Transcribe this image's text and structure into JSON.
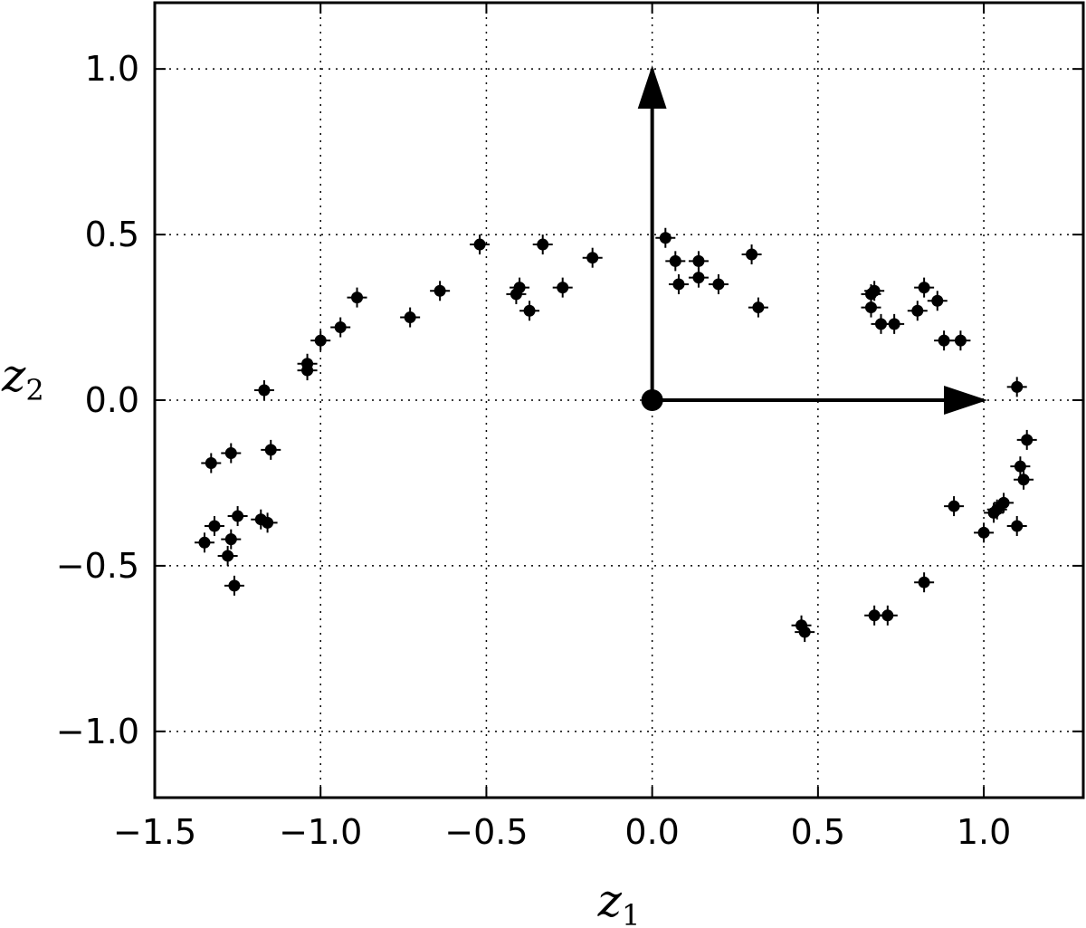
{
  "chart_data": {
    "type": "scatter",
    "title": "",
    "xlabel": {
      "base": "z",
      "sub": "1"
    },
    "ylabel": {
      "base": "z",
      "sub": "2"
    },
    "xlim": [
      -1.5,
      1.3
    ],
    "ylim": [
      -1.2,
      1.2
    ],
    "xticks": [
      -1.5,
      -1.0,
      -0.5,
      0.0,
      0.5,
      1.0
    ],
    "xtick_labels": [
      "−1.5",
      "−1.0",
      "−0.5",
      "0.0",
      "0.5",
      "1.0"
    ],
    "yticks": [
      -1.0,
      -0.5,
      0.0,
      0.5,
      1.0
    ],
    "ytick_labels": [
      "−1.0",
      "−0.5",
      "0.0",
      "0.5",
      "1.0"
    ],
    "grid": true,
    "grid_style": "dotted",
    "marker": "point with plus",
    "color": "#000000",
    "origin_point": [
      0.0,
      0.0
    ],
    "vectors": [
      {
        "from": [
          0.0,
          0.0
        ],
        "to": [
          1.0,
          0.0
        ]
      },
      {
        "from": [
          0.0,
          0.0
        ],
        "to": [
          0.0,
          1.0
        ]
      }
    ],
    "points": [
      [
        -1.35,
        -0.43
      ],
      [
        -1.32,
        -0.38
      ],
      [
        -1.28,
        -0.47
      ],
      [
        -1.27,
        -0.42
      ],
      [
        -1.26,
        -0.56
      ],
      [
        -1.25,
        -0.35
      ],
      [
        -1.18,
        -0.36
      ],
      [
        -1.16,
        -0.37
      ],
      [
        -1.33,
        -0.19
      ],
      [
        -1.27,
        -0.16
      ],
      [
        -1.15,
        -0.15
      ],
      [
        -1.17,
        0.03
      ],
      [
        -1.04,
        0.11
      ],
      [
        -1.04,
        0.09
      ],
      [
        -1.0,
        0.18
      ],
      [
        -0.94,
        0.22
      ],
      [
        -0.89,
        0.31
      ],
      [
        -0.73,
        0.25
      ],
      [
        -0.64,
        0.33
      ],
      [
        -0.52,
        0.47
      ],
      [
        -0.41,
        0.32
      ],
      [
        -0.4,
        0.34
      ],
      [
        -0.37,
        0.27
      ],
      [
        -0.33,
        0.47
      ],
      [
        -0.27,
        0.34
      ],
      [
        -0.18,
        0.43
      ],
      [
        0.04,
        0.49
      ],
      [
        0.07,
        0.42
      ],
      [
        0.08,
        0.35
      ],
      [
        0.14,
        0.37
      ],
      [
        0.14,
        0.42
      ],
      [
        0.2,
        0.35
      ],
      [
        0.3,
        0.44
      ],
      [
        0.32,
        0.28
      ],
      [
        0.66,
        0.32
      ],
      [
        0.66,
        0.28
      ],
      [
        0.67,
        0.33
      ],
      [
        0.69,
        0.23
      ],
      [
        0.73,
        0.23
      ],
      [
        0.8,
        0.27
      ],
      [
        0.82,
        0.34
      ],
      [
        0.86,
        0.3
      ],
      [
        0.88,
        0.18
      ],
      [
        0.93,
        0.18
      ],
      [
        1.1,
        0.04
      ],
      [
        1.13,
        -0.12
      ],
      [
        1.11,
        -0.2
      ],
      [
        1.12,
        -0.24
      ],
      [
        0.91,
        -0.32
      ],
      [
        1.06,
        -0.31
      ],
      [
        1.04,
        -0.33
      ],
      [
        1.03,
        -0.34
      ],
      [
        1.1,
        -0.38
      ],
      [
        1.0,
        -0.4
      ],
      [
        0.82,
        -0.55
      ],
      [
        0.67,
        -0.65
      ],
      [
        0.71,
        -0.65
      ],
      [
        0.45,
        -0.68
      ],
      [
        0.46,
        -0.7
      ]
    ]
  }
}
